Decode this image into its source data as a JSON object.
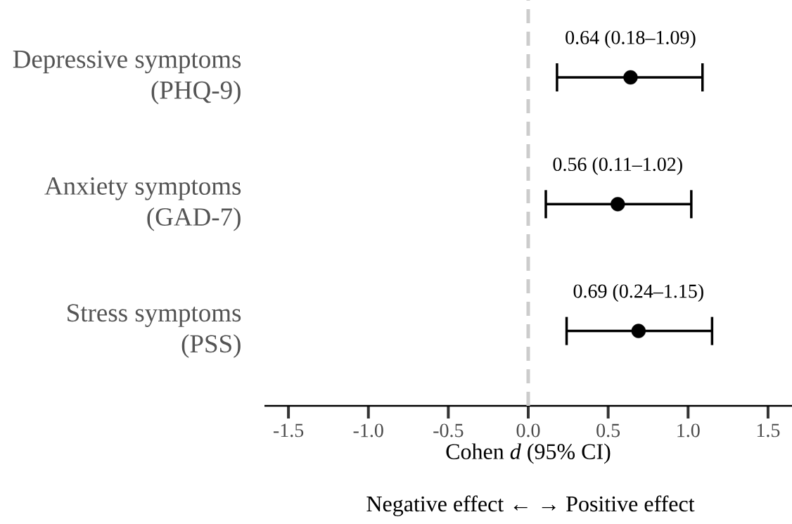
{
  "chart_data": {
    "type": "scatter",
    "orientation": "horizontal",
    "categories": [
      "Depressive symptoms (PHQ-9)",
      "Anxiety symptoms (GAD-7)",
      "Stress symptoms (PSS)"
    ],
    "series": [
      {
        "color": "#000000",
        "values": [
          0.64,
          0.56,
          0.69
        ],
        "errors": [
          [
            0.18,
            1.09
          ],
          [
            0.11,
            1.02
          ],
          [
            0.24,
            1.15
          ]
        ],
        "value_labels": [
          "0.64 (0.18–1.09)",
          "0.56 (0.11–1.02)",
          "0.69 (0.24–1.15)"
        ]
      }
    ],
    "xlim": [
      -1.65,
      1.65
    ],
    "xticks": [
      -1.5,
      {
        "value": -1.0,
        "label": "-1.0"
      },
      -0.5,
      {
        "value": 0,
        "label": "0.0"
      },
      0.5,
      {
        "value": 1.0,
        "label": "1.0"
      },
      1.5
    ],
    "xlabel": "Cohen *d* (95% CI)",
    "ref_lines": [
      {
        "axis": "x",
        "value": 0,
        "color": "#cccccc",
        "line_style": "dashed"
      }
    ],
    "annotations": [
      "Negative effect ←  → Positive effect"
    ]
  }
}
